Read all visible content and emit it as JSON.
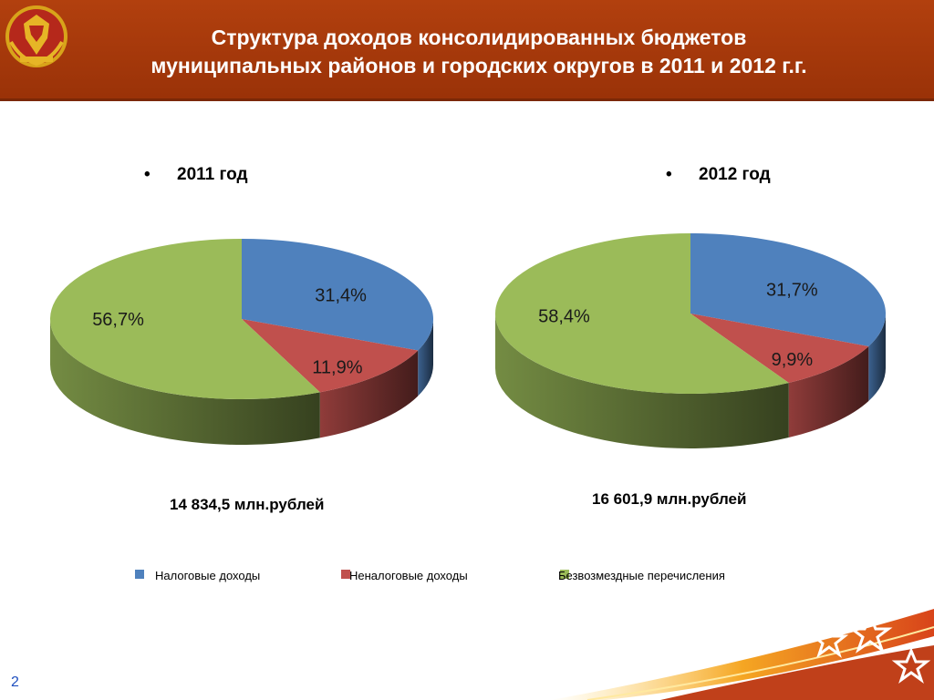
{
  "header": {
    "title_line1": "Структура доходов консолидированных бюджетов",
    "title_line2": "муниципальных районов и городских округов в 2011 и 2012 г.г."
  },
  "colors": {
    "header_bg": "#a8370a",
    "tax": "#4f81bd",
    "nontax": "#c0504d",
    "transfers": "#9bbb59"
  },
  "chart_data": [
    {
      "type": "pie",
      "title": "2011 год",
      "categories": [
        "Налоговые доходы",
        "Неналоговые доходы",
        "Безвозмездные перечисления"
      ],
      "values": [
        31.4,
        11.9,
        56.7
      ],
      "labels": [
        "31,4%",
        "11,9%",
        "56,7%"
      ],
      "total": "14 834,5 млн.рублей",
      "legend_position": "bottom"
    },
    {
      "type": "pie",
      "title": "2012 год",
      "categories": [
        "Налоговые доходы",
        "Неналоговые доходы",
        "Безвозмездные перечисления"
      ],
      "values": [
        31.7,
        9.9,
        58.4
      ],
      "labels": [
        "31,7%",
        "9,9%",
        "58,4%"
      ],
      "total": "16 601,9 млн.рублей",
      "legend_position": "bottom"
    }
  ],
  "legend": [
    {
      "label": "Налоговые доходы",
      "color": "#4f81bd"
    },
    {
      "label": "Неналоговые доходы",
      "color": "#c0504d"
    },
    {
      "label": "Безвозмездные перечисления",
      "color": "#9bbb59"
    }
  ],
  "bullet": "•",
  "page_number": "2"
}
